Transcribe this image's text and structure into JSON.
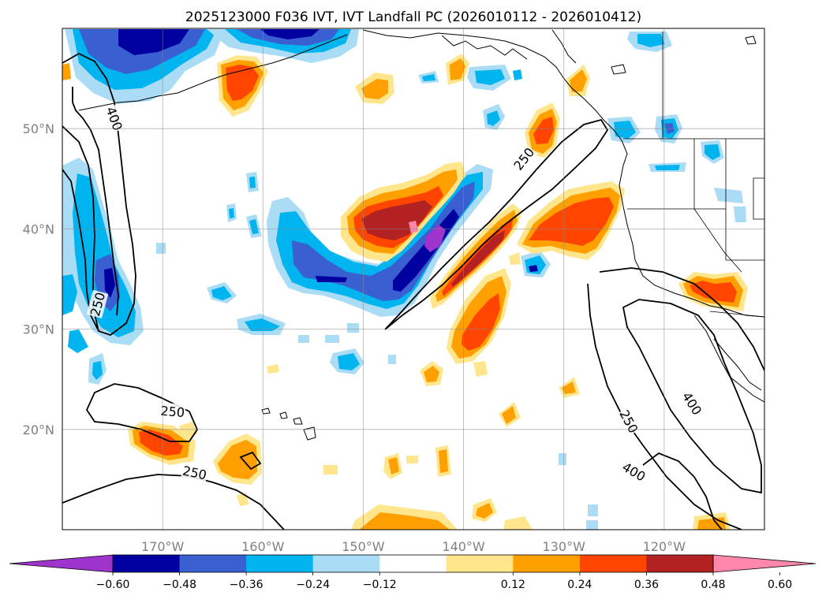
{
  "title": "2025123000 F036 IVT, IVT Landfall PC (2026010112 - 2026010412)",
  "map": {
    "lon_range": [
      -180,
      -110
    ],
    "lat_range": [
      10,
      60
    ],
    "lon_ticks": [
      {
        "lon": -170,
        "label": "170°W"
      },
      {
        "lon": -160,
        "label": "160°W"
      },
      {
        "lon": -150,
        "label": "150°W"
      },
      {
        "lon": -140,
        "label": "140°W"
      },
      {
        "lon": -130,
        "label": "130°W"
      },
      {
        "lon": -120,
        "label": "120°W"
      }
    ],
    "lat_ticks": [
      {
        "lat": 50,
        "label": "50°N"
      },
      {
        "lat": 40,
        "label": "40°N"
      },
      {
        "lat": 30,
        "label": "30°N"
      },
      {
        "lat": 20,
        "label": "20°N"
      }
    ],
    "contour_labels": [
      {
        "text": "250",
        "lon": -176.5,
        "lat": 32.5,
        "rotate": -75
      },
      {
        "text": "400",
        "lon": -174.8,
        "lat": 51.0,
        "rotate": 70
      },
      {
        "text": "250",
        "lon": -169.0,
        "lat": 21.8,
        "rotate": 5
      },
      {
        "text": "250",
        "lon": -166.8,
        "lat": 15.7,
        "rotate": 12
      },
      {
        "text": "250",
        "lon": -134.0,
        "lat": 47.0,
        "rotate": -52
      },
      {
        "text": "250",
        "lon": -123.5,
        "lat": 20.8,
        "rotate": 62
      },
      {
        "text": "400",
        "lon": -123.0,
        "lat": 15.8,
        "rotate": 30
      },
      {
        "text": "400",
        "lon": -117.2,
        "lat": 22.6,
        "rotate": 58
      }
    ]
  },
  "colorbar": {
    "colors": [
      "#9e34cc",
      "#0000a0",
      "#3a5fd0",
      "#00b4f0",
      "#aadcf5",
      "#ffffff",
      "#ffe68c",
      "#ff9f00",
      "#ff4500",
      "#b22222",
      "#ff88aa"
    ],
    "tick_labels": [
      "−0.60",
      "−0.48",
      "−0.36",
      "−0.24",
      "−0.12",
      "0.12",
      "0.24",
      "0.36",
      "0.48",
      "0.60"
    ]
  }
}
